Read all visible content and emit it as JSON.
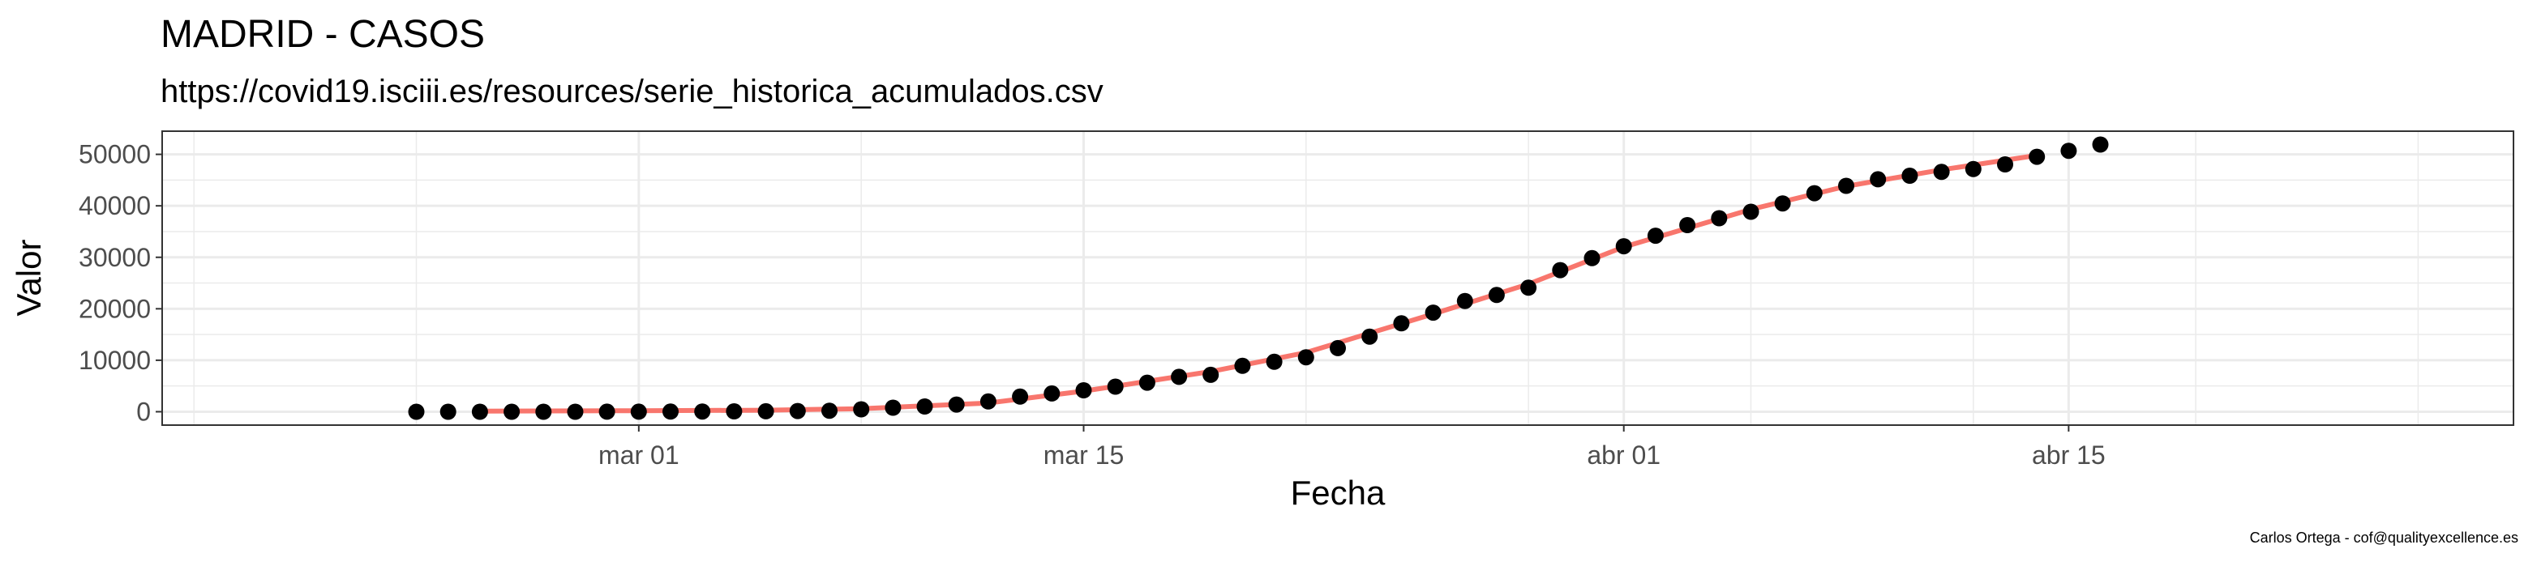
{
  "chart_data": {
    "type": "scatter",
    "title": "MADRID - CASOS",
    "subtitle": "https://covid19.isciii.es/resources/serie_historica_acumulados.csv",
    "xlabel": "Fecha",
    "ylabel": "Valor",
    "caption": "Carlos Ortega - cof@qualityexcellence.es",
    "x_ticks": [
      "mar 01",
      "mar 15",
      "abr 01",
      "abr 15"
    ],
    "y_ticks": [
      "0",
      "10000",
      "20000",
      "30000",
      "40000",
      "50000"
    ],
    "xlim": [
      "2020-02-15",
      "2020-04-29"
    ],
    "ylim": [
      -2600,
      54500
    ],
    "grid": true,
    "colors": {
      "points": "#000000",
      "smooth": "#f8766d",
      "grid": "#ebebeb",
      "panel_border": "#333333"
    },
    "series": [
      {
        "kind": "points",
        "x": [
          "2020-02-23",
          "2020-02-24",
          "2020-02-25",
          "2020-02-26",
          "2020-02-27",
          "2020-02-28",
          "2020-02-29",
          "2020-03-01",
          "2020-03-02",
          "2020-03-03",
          "2020-03-04",
          "2020-03-05",
          "2020-03-06",
          "2020-03-07",
          "2020-03-08",
          "2020-03-09",
          "2020-03-10",
          "2020-03-11",
          "2020-03-12",
          "2020-03-13",
          "2020-03-14",
          "2020-03-15",
          "2020-03-16",
          "2020-03-17",
          "2020-03-18",
          "2020-03-19",
          "2020-03-20",
          "2020-03-21",
          "2020-03-22",
          "2020-03-23",
          "2020-03-24",
          "2020-03-25",
          "2020-03-26",
          "2020-03-27",
          "2020-03-28",
          "2020-03-29",
          "2020-03-30",
          "2020-03-31",
          "2020-04-01",
          "2020-04-02",
          "2020-04-03",
          "2020-04-04",
          "2020-04-05",
          "2020-04-06",
          "2020-04-07",
          "2020-04-08",
          "2020-04-09",
          "2020-04-10",
          "2020-04-11",
          "2020-04-12",
          "2020-04-13",
          "2020-04-14",
          "2020-04-15",
          "2020-04-16"
        ],
        "y": [
          0,
          0,
          1,
          1,
          1,
          2,
          6,
          10,
          29,
          49,
          70,
          90,
          137,
          202,
          469,
          782,
          1024,
          1388,
          1990,
          2940,
          3544,
          4165,
          4871,
          5637,
          6777,
          7165,
          8921,
          9702,
          10575,
          12352,
          14597,
          17166,
          19243,
          21520,
          22677,
          24090,
          27509,
          29840,
          32155,
          34188,
          36249,
          37584,
          38850,
          40469,
          42450,
          43877,
          45154,
          45849,
          46587,
          47146,
          48048,
          49526,
          50694,
          51908
        ]
      },
      {
        "kind": "smooth",
        "x": [
          "2020-02-25",
          "2020-03-01",
          "2020-03-05",
          "2020-03-08",
          "2020-03-12",
          "2020-03-15",
          "2020-03-19",
          "2020-03-22",
          "2020-03-26",
          "2020-03-29",
          "2020-04-01",
          "2020-04-05",
          "2020-04-08",
          "2020-04-11",
          "2020-04-14"
        ],
        "y": [
          100,
          200,
          300,
          600,
          1700,
          4000,
          7800,
          11500,
          19000,
          24800,
          32000,
          39300,
          43800,
          47000,
          49800
        ]
      }
    ]
  }
}
